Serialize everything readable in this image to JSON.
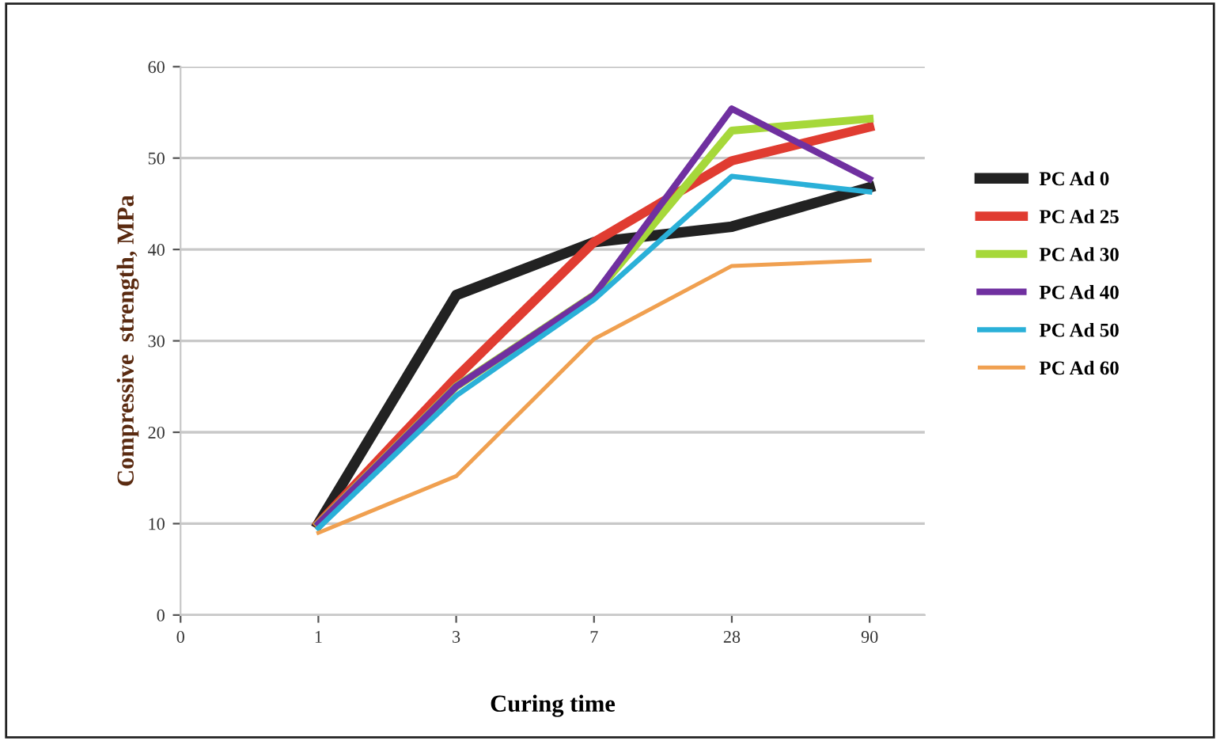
{
  "chart_data": {
    "type": "line",
    "xlabel": "Curing time",
    "ylabel": "Compressive  strength, MPa",
    "categories": [
      "0",
      "1",
      "3",
      "7",
      "28",
      "90"
    ],
    "series": [
      {
        "name": "PC Ad 0",
        "color": "#222222",
        "values": [
          null,
          10,
          35,
          40.8,
          42.5,
          46.8
        ]
      },
      {
        "name": "PC Ad 25",
        "color": "#e03c31",
        "values": [
          null,
          10,
          26,
          40.8,
          49.7,
          53.4
        ]
      },
      {
        "name": "PC Ad 30",
        "color": "#a6d83a",
        "values": [
          null,
          10,
          25,
          35,
          53,
          54.3
        ]
      },
      {
        "name": "PC Ad 40",
        "color": "#7030a0",
        "values": [
          null,
          10,
          25,
          35,
          55.4,
          47.7
        ]
      },
      {
        "name": "PC Ad 50",
        "color": "#2ab0d8",
        "values": [
          null,
          9.5,
          24,
          34.5,
          48,
          46.3
        ]
      },
      {
        "name": "PC Ad 60",
        "color": "#f0a050",
        "values": [
          null,
          9,
          15.2,
          30.2,
          38.2,
          38.8
        ]
      }
    ],
    "ylim": [
      0,
      60
    ],
    "yticks": [
      0,
      10,
      20,
      30,
      40,
      50,
      60
    ],
    "grid": "y",
    "legend": "right",
    "line_style": "solid",
    "marker": "none"
  }
}
